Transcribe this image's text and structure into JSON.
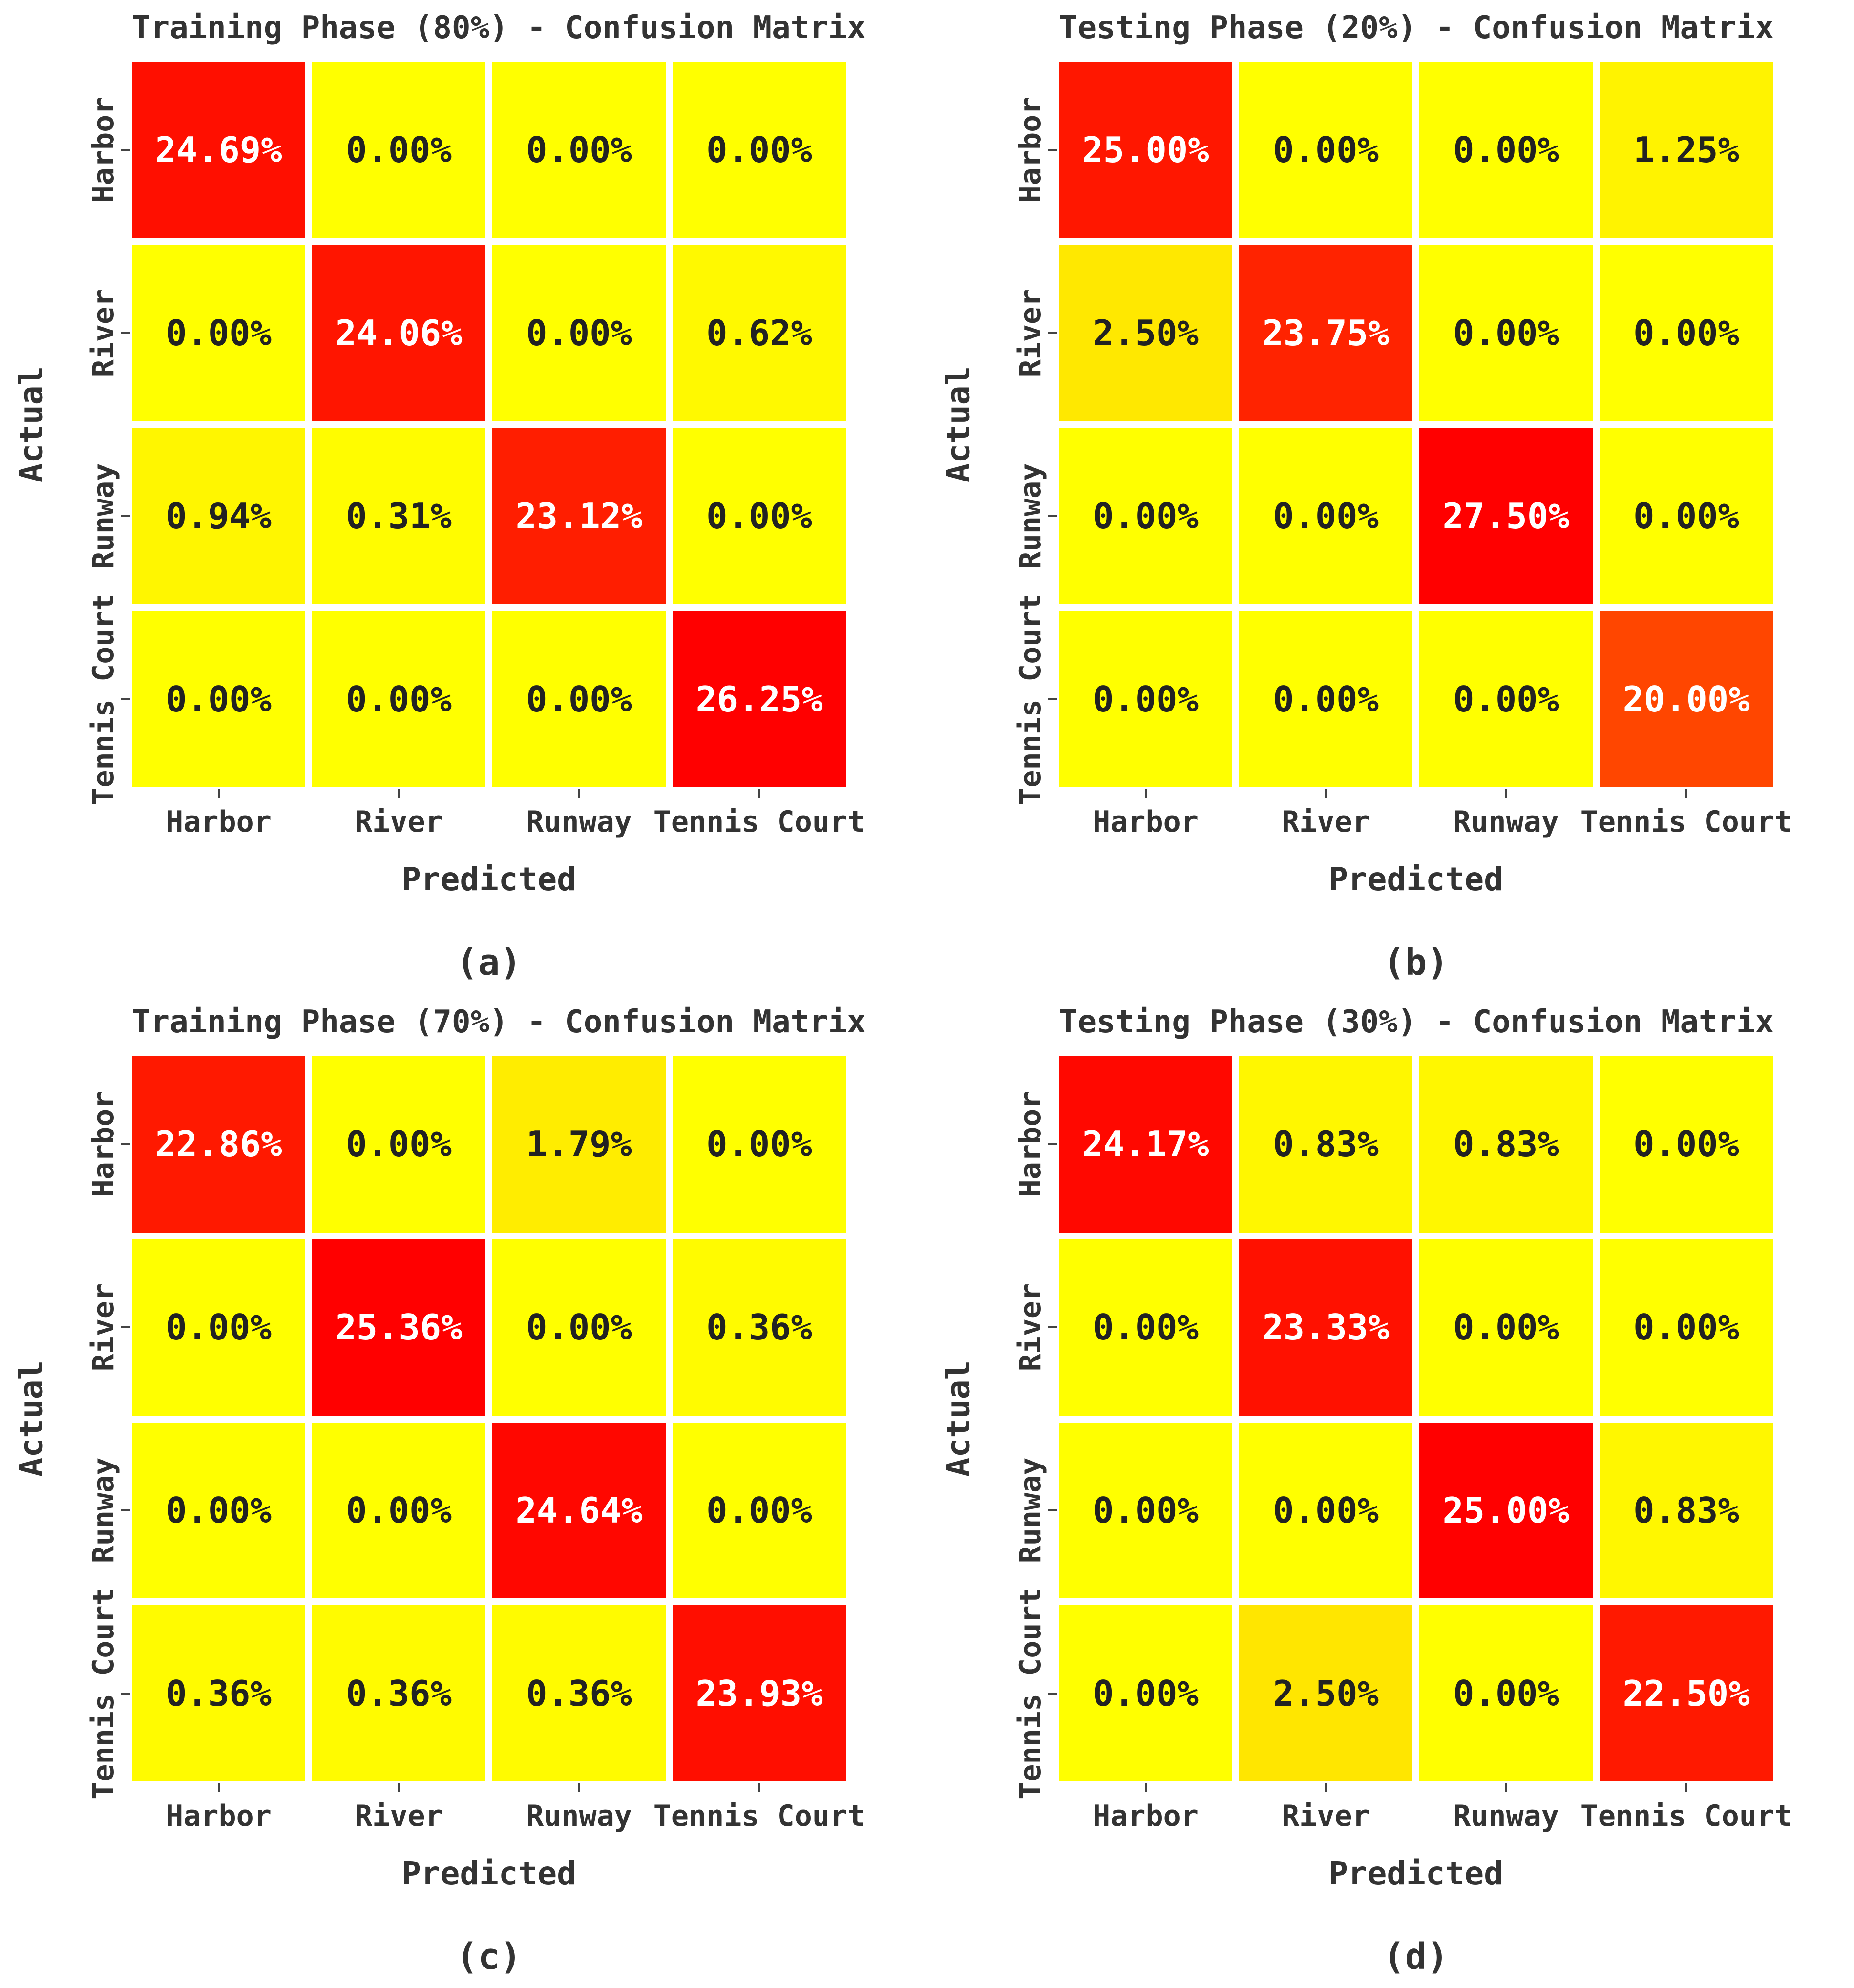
{
  "figure": {
    "background": "#ffffff",
    "colors": {
      "colormap": "autumn_r",
      "min_color": "#ffff00",
      "max_color": "#ff0000",
      "orange_example_20pct": "#ff4400",
      "cell_text_dark": "#222222",
      "cell_text_light": "#ffffff",
      "axis_text": "#333333"
    }
  },
  "chart_data": [
    {
      "type": "heatmap",
      "title": "Training Phase (80%) - Confusion Matrix",
      "caption": "(a)",
      "xlabel": "Predicted",
      "ylabel": "Actual",
      "x_categories": [
        "Harbor",
        "River",
        "Runway",
        "Tennis Court"
      ],
      "y_categories": [
        "Harbor",
        "River",
        "Runway",
        "Tennis Court"
      ],
      "unit": "%",
      "colormap": "autumn_r",
      "vmin": 0,
      "values": [
        [
          24.69,
          0.0,
          0.0,
          0.0
        ],
        [
          0.0,
          24.06,
          0.0,
          0.62
        ],
        [
          0.94,
          0.31,
          23.12,
          0.0
        ],
        [
          0.0,
          0.0,
          0.0,
          26.25
        ]
      ],
      "labels": [
        [
          "24.69%",
          "0.00%",
          "0.00%",
          "0.00%"
        ],
        [
          "0.00%",
          "24.06%",
          "0.00%",
          "0.62%"
        ],
        [
          "0.94%",
          "0.31%",
          "23.12%",
          "0.00%"
        ],
        [
          "0.00%",
          "0.00%",
          "0.00%",
          "26.25%"
        ]
      ]
    },
    {
      "type": "heatmap",
      "title": "Testing Phase (20%) - Confusion Matrix",
      "caption": "(b)",
      "xlabel": "Predicted",
      "ylabel": "Actual",
      "x_categories": [
        "Harbor",
        "River",
        "Runway",
        "Tennis Court"
      ],
      "y_categories": [
        "Harbor",
        "River",
        "Runway",
        "Tennis Court"
      ],
      "unit": "%",
      "colormap": "autumn_r",
      "vmin": 0,
      "values": [
        [
          25.0,
          0.0,
          0.0,
          1.25
        ],
        [
          2.5,
          23.75,
          0.0,
          0.0
        ],
        [
          0.0,
          0.0,
          27.5,
          0.0
        ],
        [
          0.0,
          0.0,
          0.0,
          20.0
        ]
      ],
      "labels": [
        [
          "25.00%",
          "0.00%",
          "0.00%",
          "1.25%"
        ],
        [
          "2.50%",
          "23.75%",
          "0.00%",
          "0.00%"
        ],
        [
          "0.00%",
          "0.00%",
          "27.50%",
          "0.00%"
        ],
        [
          "0.00%",
          "0.00%",
          "0.00%",
          "20.00%"
        ]
      ]
    },
    {
      "type": "heatmap",
      "title": "Training Phase (70%) - Confusion Matrix",
      "caption": "(c)",
      "xlabel": "Predicted",
      "ylabel": "Actual",
      "x_categories": [
        "Harbor",
        "River",
        "Runway",
        "Tennis Court"
      ],
      "y_categories": [
        "Harbor",
        "River",
        "Runway",
        "Tennis Court"
      ],
      "unit": "%",
      "colormap": "autumn_r",
      "vmin": 0,
      "values": [
        [
          22.86,
          0.0,
          1.79,
          0.0
        ],
        [
          0.0,
          25.36,
          0.0,
          0.36
        ],
        [
          0.0,
          0.0,
          24.64,
          0.0
        ],
        [
          0.36,
          0.36,
          0.36,
          23.93
        ]
      ],
      "labels": [
        [
          "22.86%",
          "0.00%",
          "1.79%",
          "0.00%"
        ],
        [
          "0.00%",
          "25.36%",
          "0.00%",
          "0.36%"
        ],
        [
          "0.00%",
          "0.00%",
          "24.64%",
          "0.00%"
        ],
        [
          "0.36%",
          "0.36%",
          "0.36%",
          "23.93%"
        ]
      ]
    },
    {
      "type": "heatmap",
      "title": "Testing Phase (30%) - Confusion Matrix",
      "caption": "(d)",
      "xlabel": "Predicted",
      "ylabel": "Actual",
      "x_categories": [
        "Harbor",
        "River",
        "Runway",
        "Tennis Court"
      ],
      "y_categories": [
        "Harbor",
        "River",
        "Runway",
        "Tennis Court"
      ],
      "unit": "%",
      "colormap": "autumn_r",
      "vmin": 0,
      "values": [
        [
          24.17,
          0.83,
          0.83,
          0.0
        ],
        [
          0.0,
          23.33,
          0.0,
          0.0
        ],
        [
          0.0,
          0.0,
          25.0,
          0.83
        ],
        [
          0.0,
          2.5,
          0.0,
          22.5
        ]
      ],
      "labels": [
        [
          "24.17%",
          "0.83%",
          "0.83%",
          "0.00%"
        ],
        [
          "0.00%",
          "23.33%",
          "0.00%",
          "0.00%"
        ],
        [
          "0.00%",
          "0.00%",
          "25.00%",
          "0.83%"
        ],
        [
          "0.00%",
          "2.50%",
          "0.00%",
          "22.50%"
        ]
      ]
    }
  ]
}
